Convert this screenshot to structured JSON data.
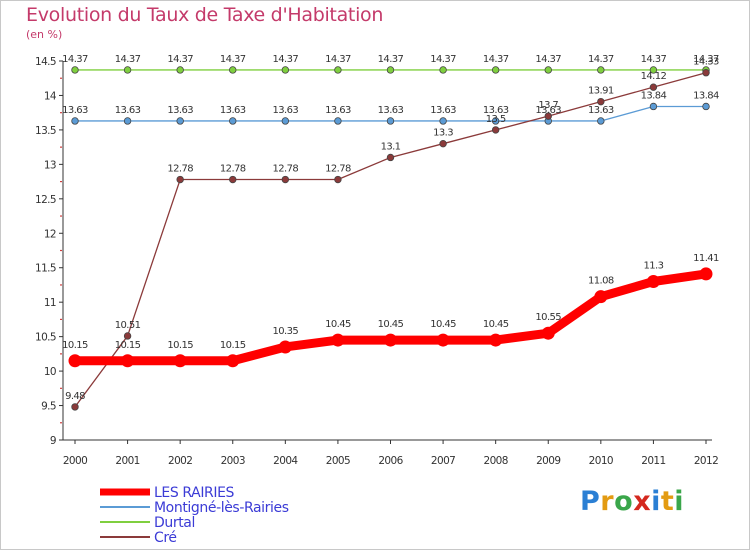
{
  "title": "Evolution du Taux de Taxe d'Habitation",
  "unit": "(en %)",
  "brand": {
    "text": "Proxiti",
    "colors": [
      "#2a7fd4",
      "#e39b12",
      "#3aa64a",
      "#d4281e",
      "#2a7fd4",
      "#e39b12",
      "#3aa64a"
    ]
  },
  "chart_data": {
    "type": "line",
    "title": "Evolution du Taux de Taxe d'Habitation",
    "ylabel": "(en %)",
    "xlabel": "",
    "x": [
      "2000",
      "2001",
      "2002",
      "2003",
      "2004",
      "2005",
      "2006",
      "2007",
      "2008",
      "2009",
      "2010",
      "2011",
      "2012"
    ],
    "ylim": [
      9,
      14.5
    ],
    "yticks": [
      "9",
      "9.5",
      "10",
      "10.5",
      "11",
      "11.5",
      "12",
      "12.5",
      "13",
      "13.5",
      "14",
      "14.5"
    ],
    "legend_position": "bottom-left",
    "series": [
      {
        "name": "LES RAIRIES",
        "color": "#ff0000",
        "values": [
          10.15,
          10.15,
          10.15,
          10.15,
          10.35,
          10.45,
          10.45,
          10.45,
          10.45,
          10.55,
          11.08,
          11.3,
          11.41
        ],
        "labels": [
          "10.15",
          "10.15",
          "10.15",
          "10.15",
          "10.35",
          "10.45",
          "10.45",
          "10.45",
          "10.45",
          "10.55",
          "11.08",
          "11.3",
          "11.41"
        ]
      },
      {
        "name": "Montigné-lès-Rairies",
        "color": "#5b9bd5",
        "values": [
          13.63,
          13.63,
          13.63,
          13.63,
          13.63,
          13.63,
          13.63,
          13.63,
          13.63,
          13.63,
          13.63,
          13.84,
          13.84
        ],
        "labels": [
          "13.63",
          "13.63",
          "13.63",
          "13.63",
          "13.63",
          "13.63",
          "13.63",
          "13.63",
          "13.63",
          "13.63",
          "13.63",
          "13.84",
          "13.84"
        ]
      },
      {
        "name": "Durtal",
        "color": "#7fcf3f",
        "values": [
          14.37,
          14.37,
          14.37,
          14.37,
          14.37,
          14.37,
          14.37,
          14.37,
          14.37,
          14.37,
          14.37,
          14.37,
          14.37
        ],
        "labels": [
          "14.37",
          "14.37",
          "14.37",
          "14.37",
          "14.37",
          "14.37",
          "14.37",
          "14.37",
          "14.37",
          "14.37",
          "14.37",
          "14.37",
          "14.37"
        ]
      },
      {
        "name": "Cré",
        "color": "#8b3a3a",
        "values": [
          9.48,
          10.51,
          12.78,
          12.78,
          12.78,
          12.78,
          13.1,
          13.3,
          13.5,
          13.7,
          13.91,
          14.12,
          14.33
        ],
        "labels": [
          "9.48",
          "10.51",
          "12.78",
          "12.78",
          "12.78",
          "12.78",
          "13.1",
          "13.3",
          "13.5",
          "13.7",
          "13.91",
          "14.12",
          "14.33"
        ]
      }
    ]
  }
}
